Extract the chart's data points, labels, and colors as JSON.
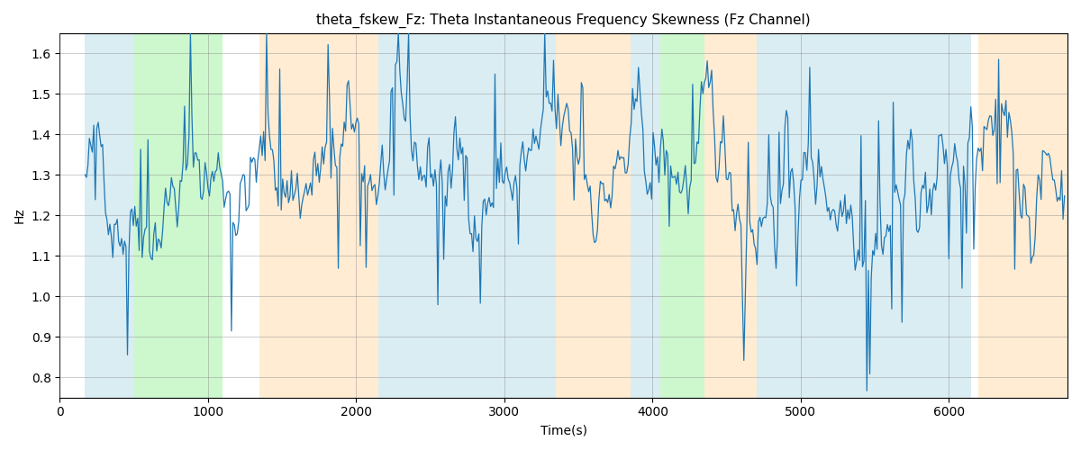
{
  "title": "theta_fskew_Fz: Theta Instantaneous Frequency Skewness (Fz Channel)",
  "xlabel": "Time(s)",
  "ylabel": "Hz",
  "xlim": [
    0,
    6800
  ],
  "ylim": [
    0.75,
    1.65
  ],
  "yticks": [
    0.8,
    0.9,
    1.0,
    1.1,
    1.2,
    1.3,
    1.4,
    1.5,
    1.6
  ],
  "xticks": [
    0,
    1000,
    2000,
    3000,
    4000,
    5000,
    6000
  ],
  "bg_regions": [
    {
      "xmin": 170,
      "xmax": 500,
      "color": "#add8e6",
      "alpha": 0.45
    },
    {
      "xmin": 500,
      "xmax": 1100,
      "color": "#90ee90",
      "alpha": 0.45
    },
    {
      "xmin": 1350,
      "xmax": 2150,
      "color": "#ffd59e",
      "alpha": 0.45
    },
    {
      "xmin": 2150,
      "xmax": 3350,
      "color": "#add8e6",
      "alpha": 0.45
    },
    {
      "xmin": 3350,
      "xmax": 3850,
      "color": "#ffd59e",
      "alpha": 0.45
    },
    {
      "xmin": 3850,
      "xmax": 4050,
      "color": "#add8e6",
      "alpha": 0.45
    },
    {
      "xmin": 4050,
      "xmax": 4350,
      "color": "#90ee90",
      "alpha": 0.45
    },
    {
      "xmin": 4350,
      "xmax": 4700,
      "color": "#ffd59e",
      "alpha": 0.45
    },
    {
      "xmin": 4700,
      "xmax": 6150,
      "color": "#add8e6",
      "alpha": 0.45
    },
    {
      "xmin": 6200,
      "xmax": 6800,
      "color": "#ffd59e",
      "alpha": 0.45
    }
  ],
  "line_color": "#1f77b4",
  "line_width": 0.9,
  "seed": 42,
  "n_points": 670,
  "ar_coef": 0.92,
  "noise_std": 0.045,
  "mean_val": 1.3,
  "n_spikes": 55,
  "spike_min": 0.12,
  "spike_max": 0.32
}
